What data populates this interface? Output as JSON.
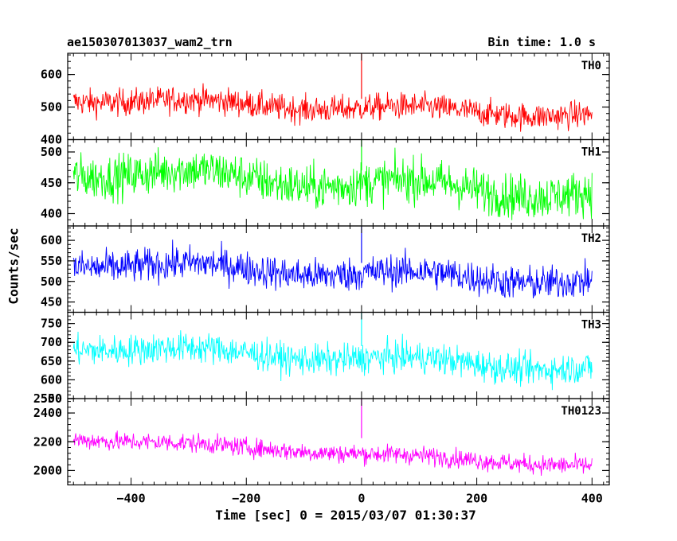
{
  "header": {
    "title": "ae150307013037_wam2_trn",
    "bin_time": "Bin time: 1.0 s"
  },
  "chart_data": {
    "type": "line",
    "xlabel": "Time [sec] 0 = 2015/03/07 01:30:37",
    "ylabel": "Counts/sec",
    "xlim": [
      -510,
      430
    ],
    "x_ticks": [
      -400,
      -200,
      0,
      200,
      400
    ],
    "x_range_data": [
      -500,
      400
    ],
    "bin_time": 1.0,
    "panels": [
      {
        "name": "TH0",
        "color": "#ff0000",
        "ylim": [
          400,
          665
        ],
        "y_ticks": [
          400,
          500,
          600
        ],
        "trend_start": 525,
        "trend_end": 475,
        "noise_amplitude": 38,
        "spike": {
          "x": 0,
          "y": 665
        }
      },
      {
        "name": "TH1",
        "color": "#00ff00",
        "ylim": [
          380,
          520
        ],
        "y_ticks": [
          400,
          450,
          500
        ],
        "trend_start": 470,
        "trend_end": 432,
        "noise_amplitude": 33,
        "spike": {
          "x": 0,
          "y": 520
        }
      },
      {
        "name": "TH2",
        "color": "#0000ff",
        "ylim": [
          425,
          635
        ],
        "y_ticks": [
          450,
          500,
          550,
          600
        ],
        "trend_start": 545,
        "trend_end": 500,
        "noise_amplitude": 38,
        "spike": {
          "x": 0,
          "y": 635
        }
      },
      {
        "name": "TH3",
        "color": "#00ffff",
        "ylim": [
          550,
          780
        ],
        "y_ticks": [
          550,
          600,
          650,
          700,
          750
        ],
        "trend_start": 690,
        "trend_end": 630,
        "noise_amplitude": 38,
        "spike": {
          "x": 0,
          "y": 780
        }
      },
      {
        "name": "TH0123",
        "color": "#ff00ff",
        "ylim": [
          1900,
          2500
        ],
        "y_ticks": [
          2000,
          2200,
          2400,
          2500
        ],
        "trend_start": 2225,
        "trend_end": 2030,
        "noise_amplitude": 60,
        "spike": {
          "x": 0,
          "y": 2500
        }
      }
    ]
  }
}
